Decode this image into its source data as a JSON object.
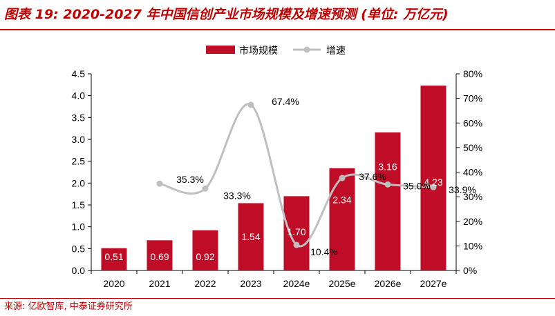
{
  "title": "图表 19:  2020-2027 年中国信创产业市场规模及增速预测 (单位: 万亿元)",
  "source": "来源: 亿欧智库, 中泰证券研究所",
  "colors": {
    "accent": "#c00000",
    "bar": "#c00d27",
    "line": "#bfbfbf",
    "text": "#000000",
    "bar_label": "#ffffff"
  },
  "chart_data": {
    "type": "bar",
    "categories": [
      "2020",
      "2021",
      "2022",
      "2023",
      "2024e",
      "2025e",
      "2026e",
      "2027e"
    ],
    "series": [
      {
        "name": "市场规模",
        "type": "bar",
        "axis": "left",
        "values": [
          0.51,
          0.69,
          0.92,
          1.54,
          1.7,
          2.34,
          3.16,
          4.23
        ],
        "labels": [
          "0.51",
          "0.69",
          "0.92",
          "1.54",
          "1.70",
          "2.34",
          "3.16",
          "4.23"
        ]
      },
      {
        "name": "增速",
        "type": "line",
        "axis": "right",
        "smooth": true,
        "values": [
          null,
          35.3,
          33.3,
          67.4,
          10.4,
          37.6,
          35.0,
          33.9
        ],
        "labels": [
          "",
          "35.3%",
          "33.3%",
          "67.4%",
          "10.4%",
          "37.6%",
          "35.0%",
          "33.9%"
        ]
      }
    ],
    "ylim_left": [
      0,
      4.5
    ],
    "yticks_left": [
      "0.0",
      "0.5",
      "1.0",
      "1.5",
      "2.0",
      "2.5",
      "3.0",
      "3.5",
      "4.0",
      "4.5"
    ],
    "ylim_right": [
      0,
      80
    ],
    "yticks_right": [
      "0%",
      "10%",
      "20%",
      "30%",
      "40%",
      "50%",
      "60%",
      "70%",
      "80%"
    ],
    "legend": {
      "position": "top-center",
      "entries": [
        "市场规模",
        "增速"
      ]
    },
    "grid": false
  }
}
